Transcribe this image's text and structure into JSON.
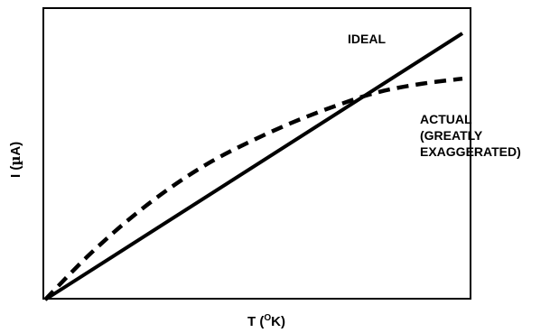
{
  "chart_data": {
    "type": "line",
    "xlabel_main": "T (",
    "xlabel_sup": "O",
    "xlabel_end": "K)",
    "ylabel_main": "I (",
    "ylabel_mu": "µ",
    "ylabel_end": "A)",
    "xlim": [
      0,
      1
    ],
    "ylim": [
      0,
      1
    ],
    "grid": false,
    "ticks": false,
    "series": [
      {
        "name": "IDEAL",
        "style": "solid",
        "x": [
          0,
          1
        ],
        "y": [
          0,
          1
        ]
      },
      {
        "name": "ACTUAL",
        "style": "dashed",
        "x": [
          0.0,
          0.1,
          0.2,
          0.3,
          0.4,
          0.5,
          0.6,
          0.7,
          0.8,
          0.9,
          1.0
        ],
        "y": [
          0.0,
          0.16,
          0.3,
          0.42,
          0.52,
          0.6,
          0.67,
          0.73,
          0.78,
          0.81,
          0.83
        ]
      }
    ],
    "annotations": {
      "ideal": "IDEAL",
      "actual_lines": [
        "ACTUAL",
        "(GREATLY",
        "EXAGGERATED)"
      ]
    },
    "colors": {
      "line": "#000000",
      "background": "#ffffff"
    }
  }
}
